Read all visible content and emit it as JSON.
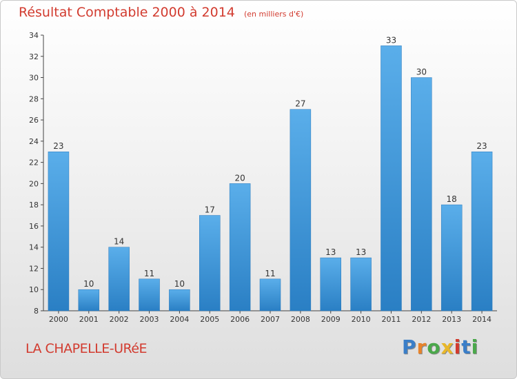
{
  "header": {
    "title": "Résultat Comptable 2000 à 2014",
    "subtitle": "(en milliers d'€)"
  },
  "footer": {
    "commune": "LA CHAPELLE-URéE",
    "logo_text": "Proxiti"
  },
  "colors": {
    "title": "#d23b2f",
    "bar_top": "#5aaeea",
    "bar_bottom": "#2a7fc4",
    "logo": [
      "#3a7ec8",
      "#e8832a",
      "#4aa84a",
      "#e8b72a",
      "#d23b2f",
      "#3a7ec8",
      "#4aa84a"
    ]
  },
  "chart_data": {
    "type": "bar",
    "categories": [
      "2000",
      "2001",
      "2002",
      "2003",
      "2004",
      "2005",
      "2006",
      "2007",
      "2008",
      "2009",
      "2010",
      "2011",
      "2012",
      "2013",
      "2014"
    ],
    "values": [
      23,
      10,
      14,
      11,
      10,
      17,
      20,
      11,
      27,
      13,
      13,
      33,
      30,
      18,
      23
    ],
    "title": "Résultat Comptable 2000 à 2014",
    "xlabel": "",
    "ylabel": "",
    "ylim": [
      8,
      34
    ],
    "yticks": [
      8,
      10,
      12,
      14,
      16,
      18,
      20,
      22,
      24,
      26,
      28,
      30,
      32,
      34
    ],
    "grid": false,
    "data_labels": true
  }
}
